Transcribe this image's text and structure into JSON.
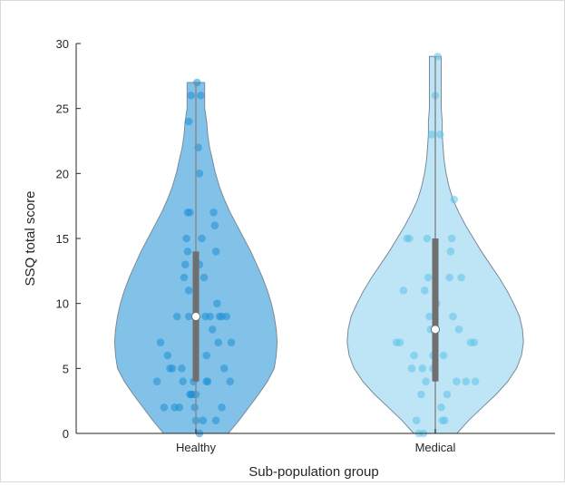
{
  "chart_data": {
    "type": "violin",
    "title": "",
    "xlabel": "Sub-population group",
    "ylabel": "SSQ total score",
    "ylim": [
      0,
      30
    ],
    "yticks": [
      0,
      5,
      10,
      15,
      20,
      25,
      30
    ],
    "categories": [
      "Healthy",
      "Medical"
    ],
    "grid": false,
    "legend": "none",
    "groups": [
      {
        "name": "Healthy",
        "color": "#5aaee0",
        "point_color": "#1e8fd6",
        "median": 9,
        "q1": 4,
        "q3": 14,
        "min": 0,
        "max": 27,
        "density": [
          [
            0,
            0.33
          ],
          [
            1,
            0.44
          ],
          [
            2,
            0.54
          ],
          [
            3,
            0.64
          ],
          [
            4,
            0.73
          ],
          [
            5,
            0.8
          ],
          [
            6,
            0.82
          ],
          [
            7,
            0.83
          ],
          [
            8,
            0.82
          ],
          [
            9,
            0.8
          ],
          [
            10,
            0.77
          ],
          [
            11,
            0.73
          ],
          [
            12,
            0.68
          ],
          [
            13,
            0.62
          ],
          [
            14,
            0.56
          ],
          [
            15,
            0.49
          ],
          [
            16,
            0.42
          ],
          [
            17,
            0.35
          ],
          [
            18,
            0.29
          ],
          [
            19,
            0.24
          ],
          [
            20,
            0.2
          ],
          [
            21,
            0.17
          ],
          [
            22,
            0.14
          ],
          [
            23,
            0.12
          ],
          [
            24,
            0.11
          ],
          [
            25,
            0.09
          ],
          [
            26,
            0.09
          ],
          [
            27,
            0.09
          ]
        ],
        "points": [
          [
            -0.33,
            4
          ],
          [
            -0.3,
            7
          ],
          [
            -0.27,
            2
          ],
          [
            -0.24,
            6
          ],
          [
            -0.22,
            5
          ],
          [
            -0.2,
            5
          ],
          [
            -0.18,
            2
          ],
          [
            -0.16,
            9
          ],
          [
            -0.14,
            2
          ],
          [
            -0.11,
            4
          ],
          [
            -0.1,
            12
          ],
          [
            -0.09,
            13
          ],
          [
            -0.08,
            15
          ],
          [
            -0.07,
            14
          ],
          [
            -0.06,
            11
          ],
          [
            -0.05,
            3
          ],
          [
            -0.03,
            3
          ],
          [
            -0.02,
            4
          ],
          [
            -0.01,
            2
          ],
          [
            0.0,
            1
          ],
          [
            -0.07,
            17
          ],
          [
            -0.05,
            17
          ],
          [
            -0.06,
            24
          ],
          [
            -0.04,
            26
          ],
          [
            -0.06,
            9
          ],
          [
            0.04,
            26
          ],
          [
            0.03,
            20
          ],
          [
            0.01,
            27
          ],
          [
            0.02,
            22
          ],
          [
            0.03,
            13
          ],
          [
            0.05,
            15
          ],
          [
            0.07,
            12
          ],
          [
            0.08,
            9
          ],
          [
            0.09,
            4
          ],
          [
            0.1,
            4
          ],
          [
            0.12,
            9
          ],
          [
            0.14,
            8
          ],
          [
            0.15,
            17
          ],
          [
            0.16,
            16
          ],
          [
            0.17,
            14
          ],
          [
            0.18,
            10
          ],
          [
            0.19,
            7
          ],
          [
            0.2,
            9
          ],
          [
            0.22,
            9
          ],
          [
            0.24,
            5
          ],
          [
            0.26,
            9
          ],
          [
            0.29,
            4
          ],
          [
            0.3,
            7
          ],
          [
            0.03,
            0
          ],
          [
            -0.04,
            3
          ],
          [
            0.06,
            1
          ],
          [
            0.17,
            1
          ],
          [
            0.22,
            2
          ],
          [
            0.0,
            3
          ],
          [
            -0.12,
            5
          ],
          [
            0.09,
            6
          ]
        ]
      },
      {
        "name": "Medical",
        "color": "#a8dcf2",
        "point_color": "#5cc3ea",
        "median": 8,
        "q1": 4,
        "q3": 15,
        "min": 0,
        "max": 29,
        "density": [
          [
            0,
            0.22
          ],
          [
            1,
            0.34
          ],
          [
            2,
            0.48
          ],
          [
            3,
            0.62
          ],
          [
            4,
            0.74
          ],
          [
            5,
            0.83
          ],
          [
            6,
            0.88
          ],
          [
            7,
            0.9
          ],
          [
            8,
            0.89
          ],
          [
            9,
            0.86
          ],
          [
            10,
            0.8
          ],
          [
            11,
            0.73
          ],
          [
            12,
            0.65
          ],
          [
            13,
            0.56
          ],
          [
            14,
            0.47
          ],
          [
            15,
            0.39
          ],
          [
            16,
            0.31
          ],
          [
            17,
            0.24
          ],
          [
            18,
            0.18
          ],
          [
            19,
            0.14
          ],
          [
            20,
            0.11
          ],
          [
            21,
            0.09
          ],
          [
            22,
            0.08
          ],
          [
            23,
            0.07
          ],
          [
            24,
            0.07
          ],
          [
            25,
            0.06
          ],
          [
            26,
            0.06
          ],
          [
            27,
            0.06
          ],
          [
            28,
            0.06
          ],
          [
            29,
            0.06
          ]
        ],
        "points": [
          [
            -0.33,
            7
          ],
          [
            -0.3,
            7
          ],
          [
            -0.27,
            11
          ],
          [
            -0.24,
            15
          ],
          [
            -0.22,
            15
          ],
          [
            -0.2,
            5
          ],
          [
            -0.18,
            6
          ],
          [
            -0.16,
            1
          ],
          [
            -0.14,
            0
          ],
          [
            -0.12,
            3
          ],
          [
            -0.11,
            5
          ],
          [
            -0.09,
            11
          ],
          [
            -0.07,
            15
          ],
          [
            -0.06,
            12
          ],
          [
            -0.05,
            9
          ],
          [
            -0.04,
            8
          ],
          [
            -0.03,
            23
          ],
          [
            -0.02,
            6
          ],
          [
            0.0,
            26
          ],
          [
            0.02,
            29
          ],
          [
            0.04,
            23
          ],
          [
            0.05,
            2
          ],
          [
            0.06,
            1
          ],
          [
            0.08,
            1
          ],
          [
            0.1,
            3
          ],
          [
            0.12,
            12
          ],
          [
            0.13,
            14
          ],
          [
            0.14,
            15
          ],
          [
            0.15,
            9
          ],
          [
            0.16,
            18
          ],
          [
            0.18,
            4
          ],
          [
            0.2,
            8
          ],
          [
            0.22,
            12
          ],
          [
            0.26,
            4
          ],
          [
            0.3,
            7
          ],
          [
            0.33,
            7
          ],
          [
            0.34,
            4
          ],
          [
            -0.1,
            0
          ],
          [
            0.01,
            10
          ],
          [
            -0.02,
            5
          ],
          [
            0.07,
            6
          ],
          [
            -0.08,
            4
          ]
        ]
      }
    ]
  }
}
